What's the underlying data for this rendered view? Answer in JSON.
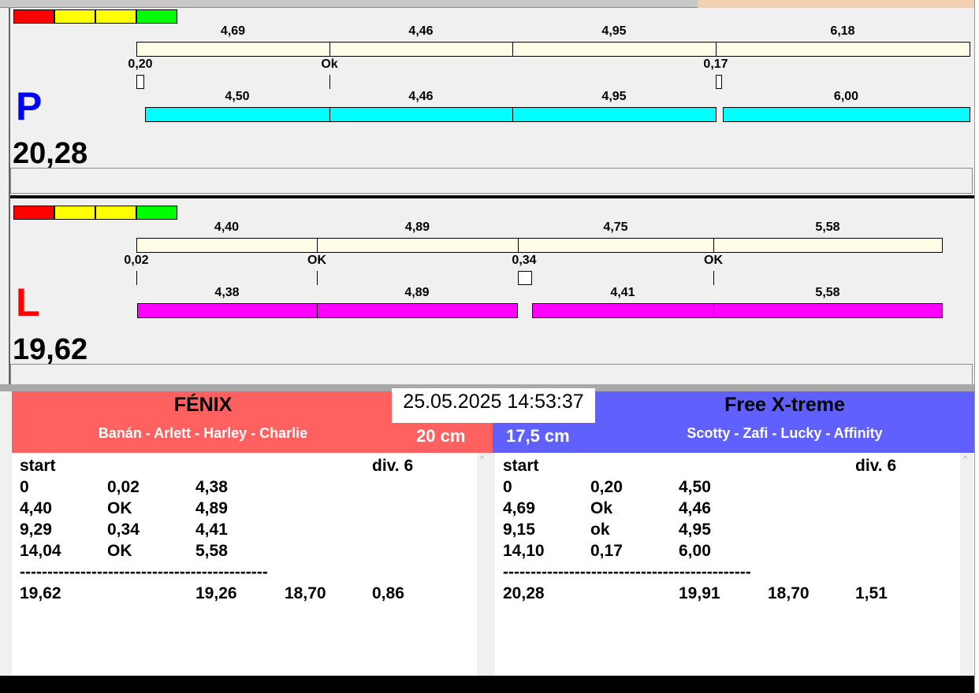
{
  "colors": {
    "cream": "#fffde6",
    "cyan": "#00ffff",
    "magenta": "#ff00ff",
    "team_left": "#ff6060",
    "team_right": "#6060ff",
    "strip": [
      "#ff0000",
      "#ffff00",
      "#ffff00",
      "#00ff00"
    ]
  },
  "panels": [
    {
      "letter": "P",
      "letter_color": "#0000ff",
      "total": "20,28",
      "top": 10,
      "upper_labels": [
        "4,69",
        "4,46",
        "4,95",
        "6,18"
      ],
      "check_labels": [
        "0,20",
        "Ok",
        "",
        "0,17"
      ],
      "lower_labels": [
        "4,50",
        "4,46",
        "4,95",
        "6,00"
      ],
      "fill": "cyan"
    },
    {
      "letter": "L",
      "letter_color": "#ff0000",
      "total": "19,62",
      "top": 259,
      "upper_labels": [
        "4,40",
        "4,89",
        "4,75",
        "5,58"
      ],
      "check_labels": [
        "0,02",
        "OK",
        "0,34",
        "OK"
      ],
      "lower_labels": [
        "4,38",
        "4,89",
        "4,41",
        "5,58"
      ],
      "fill": "magenta"
    }
  ],
  "datetime": "25.05.2025 14:53:37",
  "teams": [
    {
      "name": "FÉNIX",
      "dogs": "Banán - Arlett - Harley - Charlie",
      "height": "20 cm",
      "list": {
        "header": [
          "start",
          "div.  6"
        ],
        "rows": [
          [
            "0",
            "0,02",
            "4,38"
          ],
          [
            "4,40",
            "OK",
            "4,89"
          ],
          [
            "9,29",
            "0,34",
            "4,41"
          ],
          [
            "14,04",
            "OK",
            "5,58"
          ]
        ],
        "separator": "---------------------------------------------",
        "totals": [
          "19,62",
          "",
          "19,26",
          "18,70",
          "0,86"
        ]
      }
    },
    {
      "name": "Free X-treme",
      "dogs": "Scotty - Zafi - Lucky - Affinity",
      "height": "17,5 cm",
      "list": {
        "header": [
          "start",
          "div.  6"
        ],
        "rows": [
          [
            "0",
            "0,20",
            "4,50"
          ],
          [
            "4,69",
            "Ok",
            "4,46"
          ],
          [
            "9,15",
            "ok",
            "4,95"
          ],
          [
            "14,10",
            "0,17",
            "6,00"
          ]
        ],
        "separator": "---------------------------------------------",
        "totals": [
          "20,28",
          "",
          "19,91",
          "18,70",
          "1,51"
        ]
      }
    }
  ]
}
